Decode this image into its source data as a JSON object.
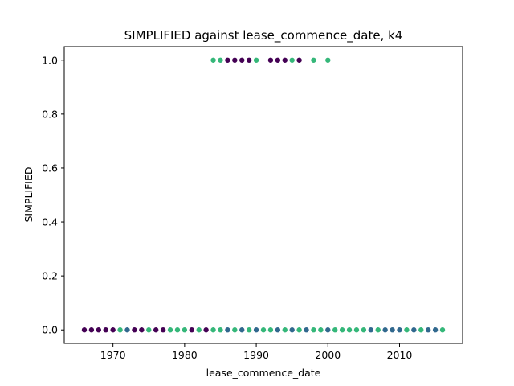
{
  "chart_data": {
    "type": "scatter",
    "title": "SIMPLIFIED against lease_commence_date, k4",
    "xlabel": "lease_commence_date",
    "ylabel": "SIMPLIFIED",
    "xlim": [
      1963.2,
      2018.8
    ],
    "ylim": [
      -0.05,
      1.05
    ],
    "xticks": [
      1970,
      1980,
      1990,
      2000,
      2010
    ],
    "yticks": [
      0.0,
      0.2,
      0.4,
      0.6,
      0.8,
      1.0
    ],
    "xtick_labels": [
      "1970",
      "1980",
      "1990",
      "2000",
      "2010"
    ],
    "ytick_labels": [
      "0.0",
      "0.2",
      "0.4",
      "0.6",
      "0.8",
      "1.0"
    ],
    "grid": false,
    "colors": {
      "cluster_purple": "#440154",
      "cluster_blue": "#31688e",
      "cluster_green": "#35b779"
    },
    "points": [
      {
        "x": 1966,
        "y": 0,
        "c": "cluster_purple"
      },
      {
        "x": 1967,
        "y": 0,
        "c": "cluster_purple"
      },
      {
        "x": 1968,
        "y": 0,
        "c": "cluster_purple"
      },
      {
        "x": 1969,
        "y": 0,
        "c": "cluster_purple"
      },
      {
        "x": 1970,
        "y": 0,
        "c": "cluster_purple"
      },
      {
        "x": 1971,
        "y": 0,
        "c": "cluster_green"
      },
      {
        "x": 1972,
        "y": 0,
        "c": "cluster_blue"
      },
      {
        "x": 1973,
        "y": 0,
        "c": "cluster_purple"
      },
      {
        "x": 1974,
        "y": 0,
        "c": "cluster_purple"
      },
      {
        "x": 1975,
        "y": 0,
        "c": "cluster_green"
      },
      {
        "x": 1976,
        "y": 0,
        "c": "cluster_purple"
      },
      {
        "x": 1977,
        "y": 0,
        "c": "cluster_purple"
      },
      {
        "x": 1978,
        "y": 0,
        "c": "cluster_green"
      },
      {
        "x": 1979,
        "y": 0,
        "c": "cluster_green"
      },
      {
        "x": 1980,
        "y": 0,
        "c": "cluster_green"
      },
      {
        "x": 1981,
        "y": 0,
        "c": "cluster_purple"
      },
      {
        "x": 1982,
        "y": 0,
        "c": "cluster_green"
      },
      {
        "x": 1983,
        "y": 0,
        "c": "cluster_purple"
      },
      {
        "x": 1984,
        "y": 0,
        "c": "cluster_green"
      },
      {
        "x": 1985,
        "y": 0,
        "c": "cluster_green"
      },
      {
        "x": 1986,
        "y": 0,
        "c": "cluster_blue"
      },
      {
        "x": 1987,
        "y": 0,
        "c": "cluster_green"
      },
      {
        "x": 1988,
        "y": 0,
        "c": "cluster_blue"
      },
      {
        "x": 1989,
        "y": 0,
        "c": "cluster_green"
      },
      {
        "x": 1990,
        "y": 0,
        "c": "cluster_blue"
      },
      {
        "x": 1991,
        "y": 0,
        "c": "cluster_green"
      },
      {
        "x": 1992,
        "y": 0,
        "c": "cluster_green"
      },
      {
        "x": 1993,
        "y": 0,
        "c": "cluster_blue"
      },
      {
        "x": 1994,
        "y": 0,
        "c": "cluster_green"
      },
      {
        "x": 1995,
        "y": 0,
        "c": "cluster_blue"
      },
      {
        "x": 1996,
        "y": 0,
        "c": "cluster_green"
      },
      {
        "x": 1997,
        "y": 0,
        "c": "cluster_blue"
      },
      {
        "x": 1998,
        "y": 0,
        "c": "cluster_green"
      },
      {
        "x": 1999,
        "y": 0,
        "c": "cluster_green"
      },
      {
        "x": 2000,
        "y": 0,
        "c": "cluster_blue"
      },
      {
        "x": 2001,
        "y": 0,
        "c": "cluster_green"
      },
      {
        "x": 2002,
        "y": 0,
        "c": "cluster_green"
      },
      {
        "x": 2003,
        "y": 0,
        "c": "cluster_green"
      },
      {
        "x": 2004,
        "y": 0,
        "c": "cluster_green"
      },
      {
        "x": 2005,
        "y": 0,
        "c": "cluster_green"
      },
      {
        "x": 2006,
        "y": 0,
        "c": "cluster_blue"
      },
      {
        "x": 2007,
        "y": 0,
        "c": "cluster_green"
      },
      {
        "x": 2008,
        "y": 0,
        "c": "cluster_blue"
      },
      {
        "x": 2009,
        "y": 0,
        "c": "cluster_blue"
      },
      {
        "x": 2010,
        "y": 0,
        "c": "cluster_blue"
      },
      {
        "x": 2011,
        "y": 0,
        "c": "cluster_green"
      },
      {
        "x": 2012,
        "y": 0,
        "c": "cluster_blue"
      },
      {
        "x": 2013,
        "y": 0,
        "c": "cluster_green"
      },
      {
        "x": 2014,
        "y": 0,
        "c": "cluster_blue"
      },
      {
        "x": 2015,
        "y": 0,
        "c": "cluster_blue"
      },
      {
        "x": 2016,
        "y": 0,
        "c": "cluster_green"
      },
      {
        "x": 1984,
        "y": 1,
        "c": "cluster_green"
      },
      {
        "x": 1985,
        "y": 1,
        "c": "cluster_green"
      },
      {
        "x": 1986,
        "y": 1,
        "c": "cluster_purple"
      },
      {
        "x": 1987,
        "y": 1,
        "c": "cluster_purple"
      },
      {
        "x": 1988,
        "y": 1,
        "c": "cluster_purple"
      },
      {
        "x": 1989,
        "y": 1,
        "c": "cluster_purple"
      },
      {
        "x": 1990,
        "y": 1,
        "c": "cluster_green"
      },
      {
        "x": 1992,
        "y": 1,
        "c": "cluster_purple"
      },
      {
        "x": 1993,
        "y": 1,
        "c": "cluster_purple"
      },
      {
        "x": 1994,
        "y": 1,
        "c": "cluster_purple"
      },
      {
        "x": 1995,
        "y": 1,
        "c": "cluster_green"
      },
      {
        "x": 1996,
        "y": 1,
        "c": "cluster_purple"
      },
      {
        "x": 1998,
        "y": 1,
        "c": "cluster_green"
      },
      {
        "x": 2000,
        "y": 1,
        "c": "cluster_green"
      }
    ]
  }
}
